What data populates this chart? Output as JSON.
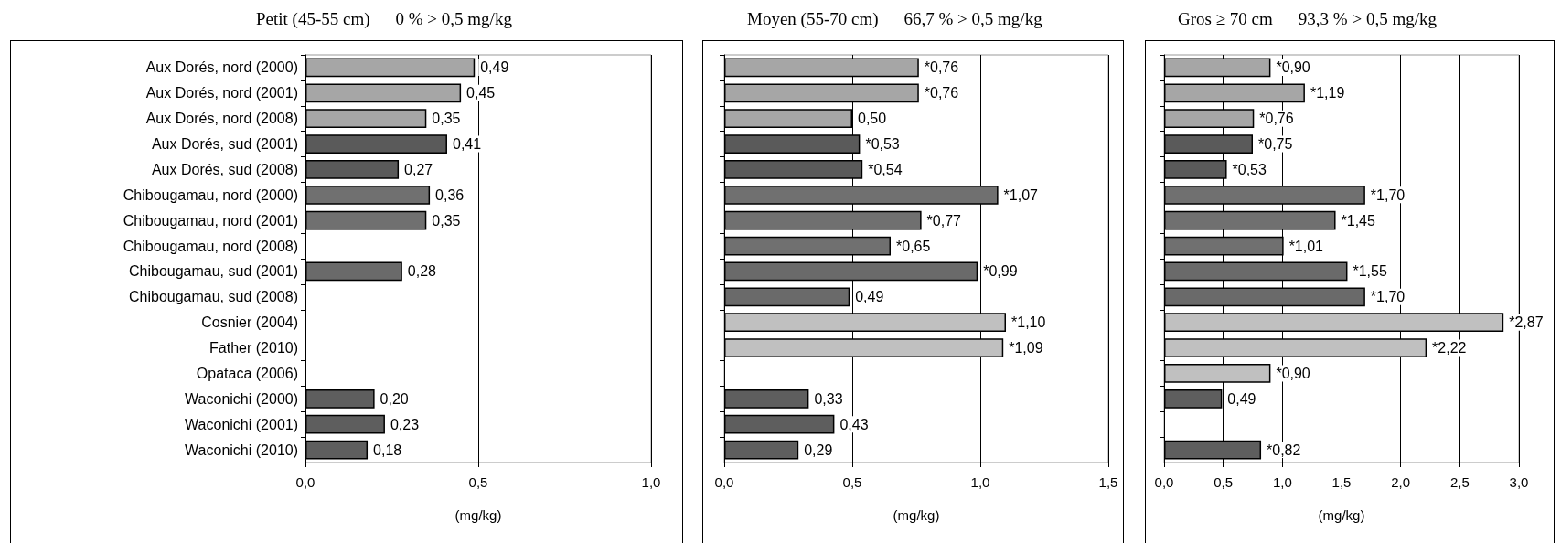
{
  "chart_data": [
    {
      "type": "bar",
      "orientation": "horizontal",
      "title": "Petit (45-55 cm)",
      "subtitle": "0 % > 0,5 mg/kg",
      "xlabel": "(mg/kg)",
      "categories": [
        "Aux Dorés, nord (2000)",
        "Aux Dorés, nord (2001)",
        "Aux Dorés, nord (2008)",
        "Aux Dorés, sud (2001)",
        "Aux Dorés, sud (2008)",
        "Chibougamau, nord (2000)",
        "Chibougamau, nord (2001)",
        "Chibougamau, nord (2008)",
        "Chibougamau, sud (2001)",
        "Chibougamau, sud (2008)",
        "Cosnier (2004)",
        "Father (2010)",
        "Opataca (2006)",
        "Waconichi (2000)",
        "Waconichi (2001)",
        "Waconichi (2010)"
      ],
      "values": [
        0.49,
        0.45,
        0.35,
        0.41,
        0.27,
        0.36,
        0.35,
        null,
        0.28,
        null,
        null,
        null,
        null,
        0.2,
        0.23,
        0.18
      ],
      "value_labels": [
        "0,49",
        "0,45",
        "0,35",
        "0,41",
        "0,27",
        "0,36",
        "0,35",
        null,
        "0,28",
        null,
        null,
        null,
        null,
        "0,20",
        "0,23",
        "0,18"
      ],
      "colors": [
        "#a6a6a6",
        "#a6a6a6",
        "#a6a6a6",
        "#5a5a5a",
        "#5a5a5a",
        "#707070",
        "#707070",
        "#707070",
        "#6a6a6a",
        "#6a6a6a",
        "#c0c0c0",
        "#c0c0c0",
        "#c0c0c0",
        "#5e5e5e",
        "#5e5e5e",
        "#5e5e5e"
      ],
      "xlim": [
        0,
        1
      ],
      "xticks": [
        {
          "value": 0,
          "label": "0,0"
        },
        {
          "value": 0.5,
          "label": "0,5"
        },
        {
          "value": 1,
          "label": "1,0"
        }
      ],
      "grid": "x"
    },
    {
      "type": "bar",
      "orientation": "horizontal",
      "title": "Moyen (55-70 cm)",
      "subtitle": "66,7 % > 0,5 mg/kg",
      "xlabel": "(mg/kg)",
      "categories": [
        null,
        null,
        null,
        null,
        null,
        null,
        null,
        null,
        null,
        null,
        null,
        null,
        null,
        null,
        null,
        null
      ],
      "values": [
        0.76,
        0.76,
        0.5,
        0.53,
        0.54,
        1.07,
        0.77,
        0.65,
        0.99,
        0.49,
        1.1,
        1.09,
        null,
        0.33,
        0.43,
        0.29
      ],
      "value_labels": [
        "*0,76",
        "*0,76",
        "0,50",
        "*0,53",
        "*0,54",
        "*1,07",
        "*0,77",
        "*0,65",
        "*0,99",
        "0,49",
        "*1,10",
        "*1,09",
        null,
        "0,33",
        "0,43",
        "0,29"
      ],
      "colors": [
        "#a6a6a6",
        "#a6a6a6",
        "#a6a6a6",
        "#5a5a5a",
        "#5a5a5a",
        "#707070",
        "#707070",
        "#707070",
        "#6a6a6a",
        "#6a6a6a",
        "#c0c0c0",
        "#c0c0c0",
        "#c0c0c0",
        "#5e5e5e",
        "#5e5e5e",
        "#5e5e5e"
      ],
      "xlim": [
        0,
        1.5
      ],
      "xticks": [
        {
          "value": 0,
          "label": "0,0"
        },
        {
          "value": 0.5,
          "label": "0,5"
        },
        {
          "value": 1,
          "label": "1,0"
        },
        {
          "value": 1.5,
          "label": "1,5"
        }
      ],
      "grid": "x"
    },
    {
      "type": "bar",
      "orientation": "horizontal",
      "title": "Gros ≥ 70 cm",
      "subtitle": "93,3 % > 0,5 mg/kg",
      "xlabel": "(mg/kg)",
      "categories": [
        null,
        null,
        null,
        null,
        null,
        null,
        null,
        null,
        null,
        null,
        null,
        null,
        null,
        null,
        null,
        null
      ],
      "values": [
        0.9,
        1.19,
        0.76,
        0.75,
        0.53,
        1.7,
        1.45,
        1.01,
        1.55,
        1.7,
        2.87,
        2.22,
        0.9,
        0.49,
        null,
        0.82
      ],
      "value_labels": [
        "*0,90",
        "*1,19",
        "*0,76",
        "*0,75",
        "*0,53",
        "*1,70",
        "*1,45",
        "*1,01",
        "*1,55",
        "*1,70",
        "*2,87",
        "*2,22",
        "*0,90",
        "0,49",
        null,
        "*0,82"
      ],
      "colors": [
        "#a6a6a6",
        "#a6a6a6",
        "#a6a6a6",
        "#5a5a5a",
        "#5a5a5a",
        "#707070",
        "#707070",
        "#707070",
        "#6a6a6a",
        "#6a6a6a",
        "#c0c0c0",
        "#c0c0c0",
        "#c0c0c0",
        "#5e5e5e",
        "#5e5e5e",
        "#5e5e5e"
      ],
      "xlim": [
        0,
        3
      ],
      "xticks": [
        {
          "value": 0,
          "label": "0,0"
        },
        {
          "value": 0.5,
          "label": "0,5"
        },
        {
          "value": 1,
          "label": "1,0"
        },
        {
          "value": 1.5,
          "label": "1,5"
        },
        {
          "value": 2,
          "label": "2,0"
        },
        {
          "value": 2.5,
          "label": "2,5"
        },
        {
          "value": 3,
          "label": "3,0"
        }
      ],
      "grid": "x"
    }
  ]
}
